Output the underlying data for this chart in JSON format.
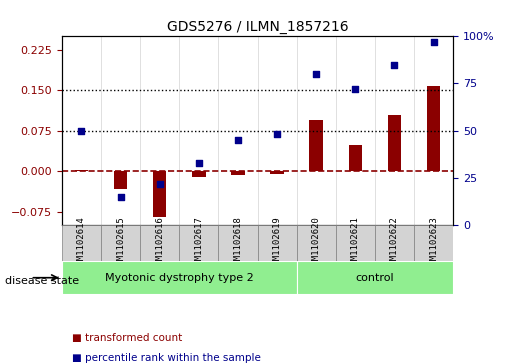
{
  "title": "GDS5276 / ILMN_1857216",
  "samples": [
    "GSM1102614",
    "GSM1102615",
    "GSM1102616",
    "GSM1102617",
    "GSM1102618",
    "GSM1102619",
    "GSM1102620",
    "GSM1102621",
    "GSM1102622",
    "GSM1102623"
  ],
  "transformed_count": [
    0.002,
    -0.033,
    -0.085,
    -0.01,
    -0.008,
    -0.005,
    0.095,
    0.048,
    0.105,
    0.158
  ],
  "percentile_rank": [
    50,
    15,
    22,
    33,
    45,
    48,
    80,
    72,
    85,
    97
  ],
  "disease_groups": [
    {
      "label": "Myotonic dystrophy type 2",
      "start": 0,
      "end": 6,
      "color": "#90EE90"
    },
    {
      "label": "control",
      "start": 6,
      "end": 10,
      "color": "#90EE90"
    }
  ],
  "bar_color": "#8B0000",
  "scatter_color": "#00008B",
  "ylim_left": [
    -0.1,
    0.25
  ],
  "ylim_right": [
    0,
    100
  ],
  "yticks_left": [
    -0.075,
    0,
    0.075,
    0.15,
    0.225
  ],
  "yticks_right": [
    0,
    25,
    50,
    75,
    100
  ],
  "hlines": [
    0.075,
    0.15
  ],
  "disease_state_label": "disease state",
  "legend": [
    {
      "label": "transformed count",
      "color": "#8B0000",
      "marker": "s"
    },
    {
      "label": "percentile rank within the sample",
      "color": "#00008B",
      "marker": "s"
    }
  ],
  "background_color": "#ffffff",
  "plot_bg_color": "#ffffff"
}
